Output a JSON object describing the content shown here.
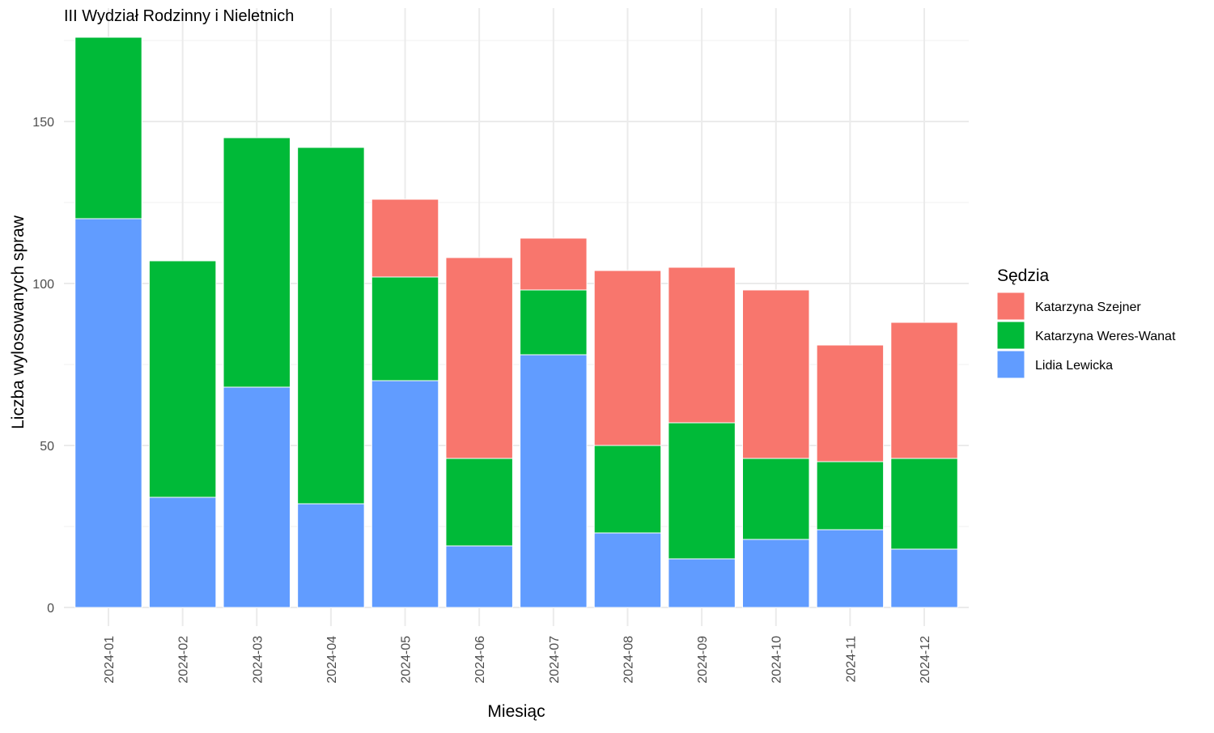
{
  "chart_data": {
    "type": "bar",
    "stacked": true,
    "title": "III Wydział Rodzinny i Nieletnich",
    "xlabel": "Miesiąc",
    "ylabel": "Liczba wylosowanych spraw",
    "ylim": [
      0,
      176
    ],
    "yticks": [
      0,
      50,
      100,
      150
    ],
    "grid": true,
    "legend_title": "Sędzia",
    "legend_position": "right",
    "categories": [
      "2024-01",
      "2024-02",
      "2024-03",
      "2024-04",
      "2024-05",
      "2024-06",
      "2024-07",
      "2024-08",
      "2024-09",
      "2024-10",
      "2024-11",
      "2024-12"
    ],
    "series": [
      {
        "name": "Lidia Lewicka",
        "color": "#619CFF",
        "values": [
          120,
          34,
          68,
          32,
          70,
          19,
          78,
          23,
          15,
          21,
          24,
          18
        ]
      },
      {
        "name": "Katarzyna Weres-Wanat",
        "color": "#00BA38",
        "values": [
          56,
          73,
          77,
          110,
          32,
          27,
          20,
          27,
          42,
          25,
          21,
          28
        ]
      },
      {
        "name": "Katarzyna Szejner",
        "color": "#F8766D",
        "values": [
          0,
          0,
          0,
          0,
          24,
          62,
          16,
          54,
          48,
          52,
          36,
          42
        ]
      }
    ],
    "legend_order": [
      "Katarzyna Szejner",
      "Katarzyna Weres-Wanat",
      "Lidia Lewicka"
    ]
  }
}
